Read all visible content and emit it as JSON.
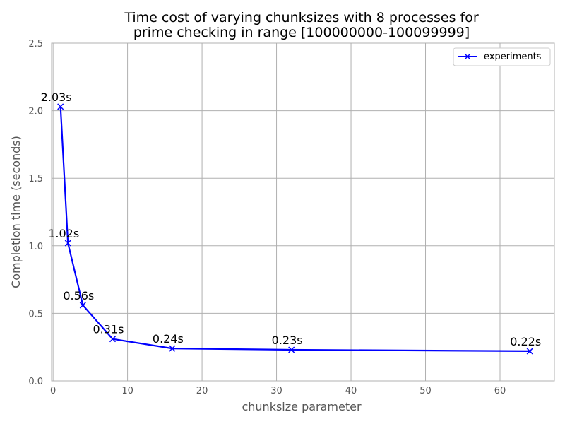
{
  "chart_data": {
    "type": "line",
    "title": [
      "Time cost of varying chunksizes with 8 processes for",
      "prime checking in range [100000000-100099999]"
    ],
    "xlabel": "chunksize parameter",
    "ylabel": "Completion time (seconds)",
    "xlim": [
      -0.2,
      67.3
    ],
    "ylim": [
      0,
      2.5
    ],
    "xticks": [
      0,
      10,
      20,
      30,
      40,
      50,
      60
    ],
    "yticks": [
      0.0,
      0.5,
      1.0,
      1.5,
      2.0,
      2.5
    ],
    "ytick_labels": [
      "0.0",
      "0.5",
      "1.0",
      "1.5",
      "2.0",
      "2.5"
    ],
    "grid": true,
    "legend_position": "top-right",
    "series": [
      {
        "name": "experiments",
        "color": "#0000ff",
        "marker": "x",
        "x": [
          1,
          2,
          4,
          8,
          16,
          32,
          64
        ],
        "y": [
          2.03,
          1.02,
          0.56,
          0.31,
          0.24,
          0.23,
          0.22
        ],
        "labels": [
          "2.03s",
          "1.02s",
          "0.56s",
          "0.31s",
          "0.24s",
          "0.23s",
          "0.22s"
        ]
      }
    ]
  }
}
